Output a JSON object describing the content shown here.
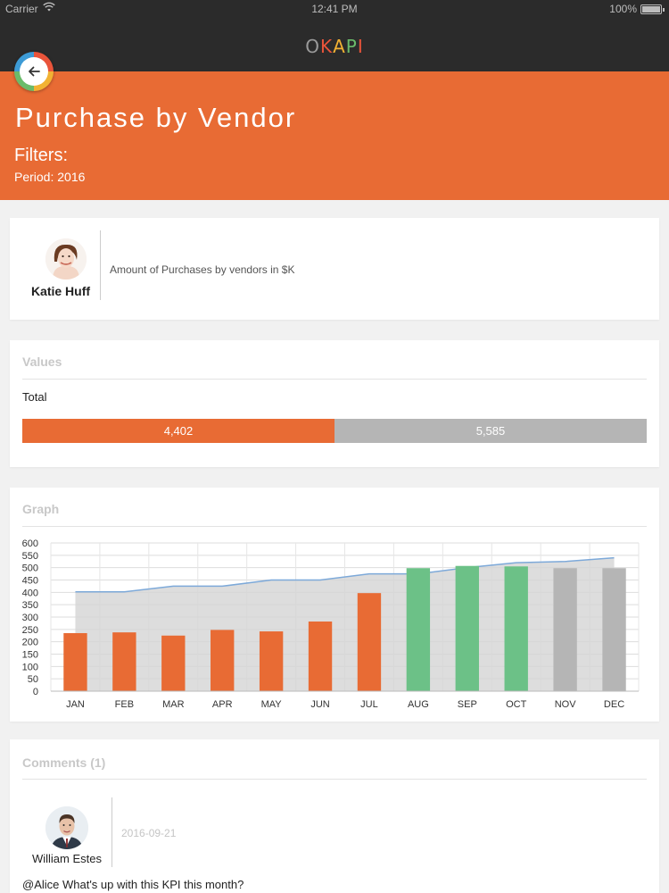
{
  "status_bar": {
    "carrier": "Carrier",
    "time": "12:41 PM",
    "battery": "100%"
  },
  "nav": {
    "logo_letters": [
      "O",
      "K",
      "A",
      "P",
      "I"
    ],
    "logo_colors": [
      "#9a9a9a",
      "#e9543a",
      "#f2b233",
      "#6abb6a",
      "#e9543a"
    ]
  },
  "header": {
    "title": "Purchase by Vendor",
    "filters_title": "Filters:",
    "period": "Period: 2016",
    "back_icon": "back-arrow-icon",
    "bg_color": "#e86b34"
  },
  "owner": {
    "name": "Katie Huff",
    "description": "Amount of Purchases by vendors in $K"
  },
  "values": {
    "title": "Values",
    "total_label": "Total",
    "actual": 4402,
    "actual_label": "4,402",
    "remaining": 5585,
    "remaining_label": "5,585",
    "actual_fraction": 0.5,
    "actual_color": "#e86b34",
    "remaining_color": "#b5b5b5"
  },
  "graph": {
    "title": "Graph"
  },
  "chart_data": {
    "type": "bar",
    "categories": [
      "JAN",
      "FEB",
      "MAR",
      "APR",
      "MAY",
      "JUN",
      "JUL",
      "AUG",
      "SEP",
      "OCT",
      "NOV",
      "DEC"
    ],
    "series": [
      {
        "values": [
          235,
          238,
          225,
          248,
          242,
          282,
          397,
          498,
          507,
          505,
          498,
          498
        ],
        "colors": [
          "#e86b34",
          "#e86b34",
          "#e86b34",
          "#e86b34",
          "#e86b34",
          "#e86b34",
          "#e86b34",
          "#6cc187",
          "#6cc187",
          "#6cc187",
          "#b5b5b5",
          "#b5b5b5"
        ]
      },
      {
        "type": "area",
        "values": [
          402,
          402,
          425,
          425,
          450,
          450,
          475,
          475,
          500,
          520,
          525,
          540
        ],
        "color": "#7da9d9"
      }
    ],
    "yticks": [
      0,
      50,
      100,
      150,
      200,
      250,
      300,
      350,
      400,
      450,
      500,
      550,
      600
    ],
    "ylim": [
      0,
      600
    ],
    "grid": true
  },
  "comments": {
    "title": "Comments (1)",
    "items": [
      {
        "author": "William Estes",
        "date": "2016-09-21",
        "text": "@Alice What's up with this KPI this month?"
      }
    ]
  }
}
